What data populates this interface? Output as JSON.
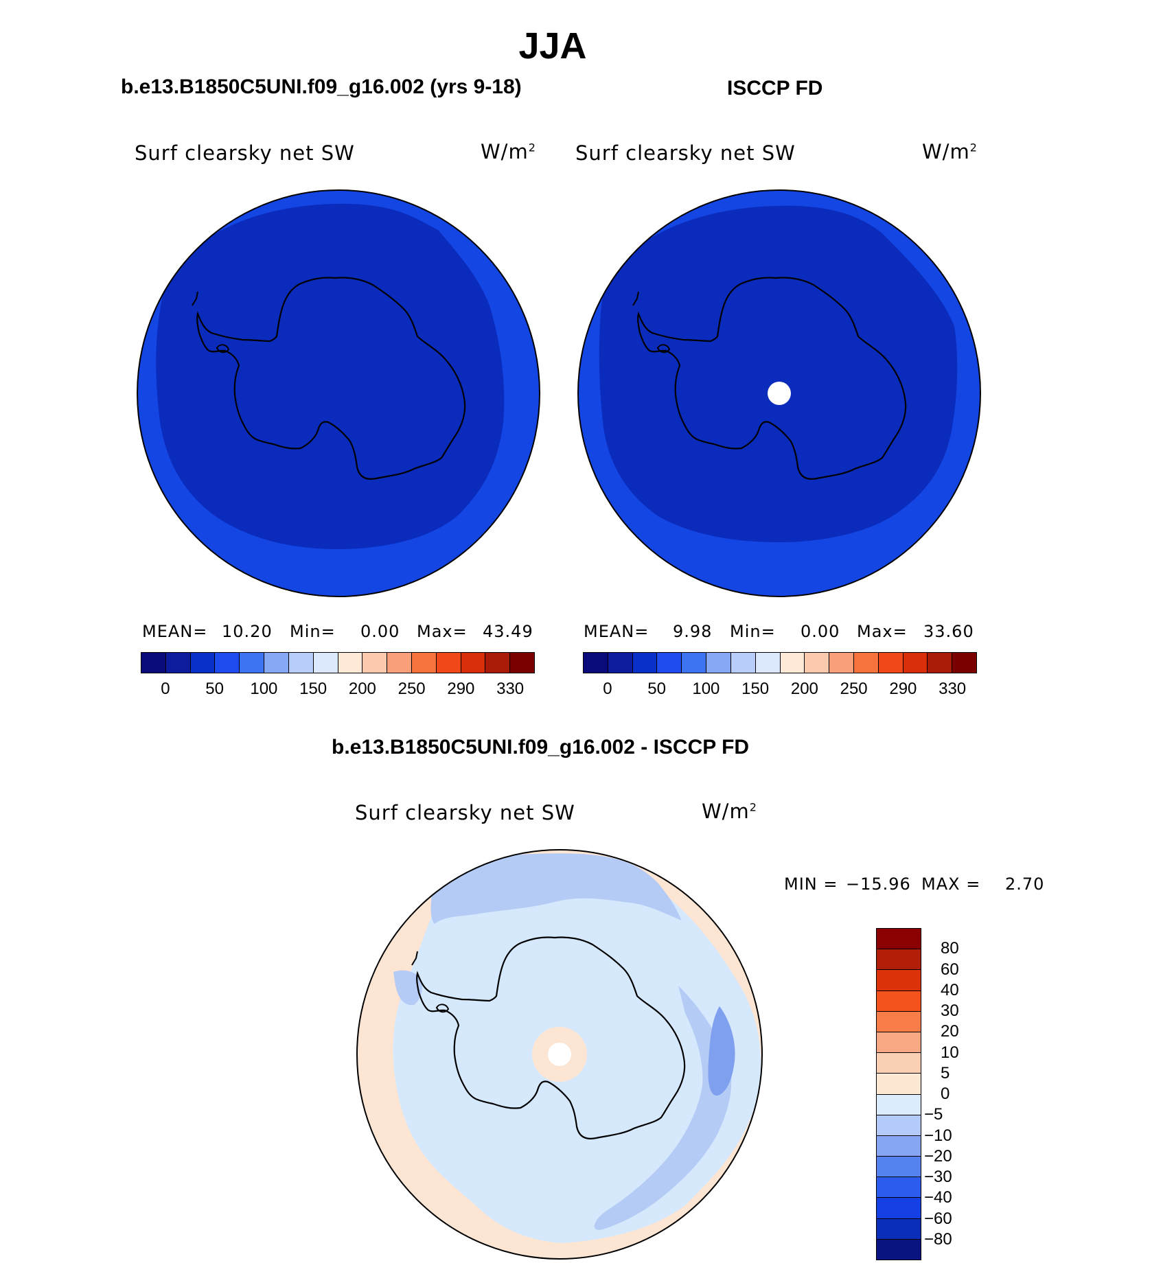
{
  "page_title": "JJA",
  "panels": [
    {
      "heading": "b.e13.B1850C5UNI.f09_g16.002 (yrs 9-18)",
      "variable": "Surf clearsky net SW",
      "units": "W/m",
      "units_exp": "2",
      "stats": {
        "mean_label": "MEAN=",
        "mean": "10.20",
        "min_label": "Min=",
        "min": "0.00",
        "max_label": "Max=",
        "max": "43.49"
      }
    },
    {
      "heading": "ISCCP FD",
      "variable": "Surf clearsky net SW",
      "units": "W/m",
      "units_exp": "2",
      "stats": {
        "mean_label": "MEAN=",
        "mean": "9.98",
        "min_label": "Min=",
        "min": "0.00",
        "max_label": "Max=",
        "max": "33.60"
      }
    }
  ],
  "colorbar_top": {
    "colors": [
      "#0a0a7a",
      "#0c1c9c",
      "#0a31c7",
      "#1e4cf0",
      "#3c74f2",
      "#86a9f6",
      "#b8cdfa",
      "#dce8fd",
      "#fde9d6",
      "#fbc9ad",
      "#f9a07a",
      "#f6733d",
      "#f04818",
      "#d92e0a",
      "#a91b07",
      "#7a0000"
    ],
    "ticks": [
      "0",
      "50",
      "100",
      "150",
      "200",
      "250",
      "290",
      "330"
    ]
  },
  "difference": {
    "heading": "b.e13.B1850C5UNI.f09_g16.002 - ISCCP FD",
    "variable": "Surf clearsky net SW",
    "units": "W/m",
    "units_exp": "2",
    "min_label": "MIN =",
    "min": "−15.96",
    "max_label": "MAX =",
    "max": "2.70"
  },
  "colorbar_diff": {
    "colors_top_to_bottom": [
      "#8b0000",
      "#b01e08",
      "#dc320a",
      "#f5521e",
      "#f87d48",
      "#f9a884",
      "#fbcfb3",
      "#fde8d4",
      "#dcecfd",
      "#b4cbfa",
      "#86a6f3",
      "#5682ef",
      "#2c5ced",
      "#1440e6",
      "#0a2eb8",
      "#0a1480"
    ],
    "ticks": [
      "80",
      "60",
      "40",
      "30",
      "20",
      "10",
      "5",
      "0",
      "−5",
      "−10",
      "−20",
      "−30",
      "−40",
      "−60",
      "−80"
    ]
  },
  "map_colors": {
    "deep_blue": "#0a2bbb",
    "ring_blue": "#1446e3",
    "outline": "#000000",
    "diff_light_blue": "#d6e8fb",
    "diff_mid_blue": "#b4cbf6",
    "diff_blue": "#7fa0ee",
    "diff_peach": "#fde5d3"
  }
}
